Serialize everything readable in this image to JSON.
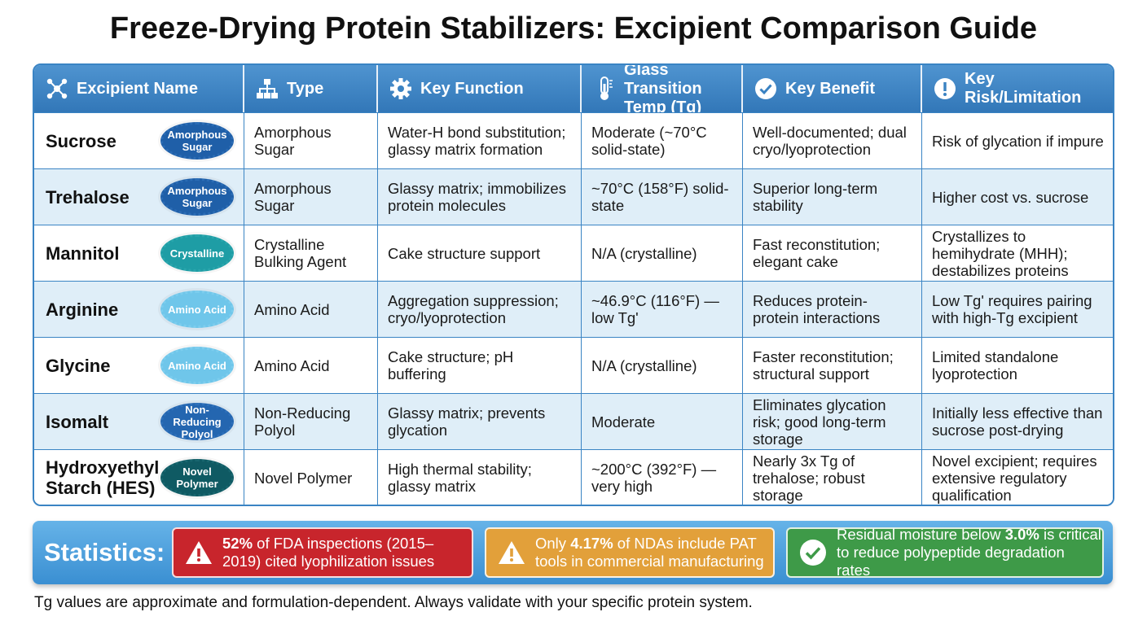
{
  "title": "Freeze-Drying Protein Stabilizers: Excipient Comparison Guide",
  "header": {
    "excipient_name": "Excipient Name",
    "type": "Type",
    "key_function": "Key Function",
    "tg": "Glass Transition Temp (Tg)",
    "key_benefit": "Key Benefit",
    "key_risk": "Key Risk/Limitation"
  },
  "rows": [
    {
      "name": "Sucrose",
      "badge": "Amorphous Sugar",
      "type": "Amorphous Sugar",
      "function": "Water-H bond substitution; glassy matrix formation",
      "tg": "Moderate (~70°C solid-state)",
      "benefit": "Well-documented; dual cryo/lyoprotection",
      "risk": "Risk of glycation if impure"
    },
    {
      "name": "Trehalose",
      "badge": "Amorphous Sugar",
      "type": "Amorphous Sugar",
      "function": "Glassy matrix; immobilizes protein molecules",
      "tg": "~70°C (158°F) solid-state",
      "benefit": "Superior long-term stability",
      "risk": "Higher cost vs. sucrose"
    },
    {
      "name": "Mannitol",
      "badge": "Crystalline",
      "type": "Crystalline Bulking Agent",
      "function": "Cake structure support",
      "tg": "N/A (crystalline)",
      "benefit": "Fast reconstitution; elegant cake",
      "risk": "Crystallizes to hemihydrate (MHH); destabilizes proteins"
    },
    {
      "name": "Arginine",
      "badge": "Amino Acid",
      "type": "Amino Acid",
      "function": "Aggregation suppression; cryo/lyoprotection",
      "tg": "~46.9°C (116°F) — low Tg'",
      "benefit": "Reduces protein-protein interactions",
      "risk": "Low Tg' requires pairing with high-Tg excipient"
    },
    {
      "name": "Glycine",
      "badge": "Amino Acid",
      "type": "Amino Acid",
      "function": "Cake structure; pH buffering",
      "tg": "N/A (crystalline)",
      "benefit": "Faster reconstitution; structural support",
      "risk": "Limited standalone lyoprotection"
    },
    {
      "name": "Isomalt",
      "badge": "Non-Reducing Polyol",
      "type": "Non-Reducing Polyol",
      "function": "Glassy matrix; prevents glycation",
      "tg": "Moderate",
      "benefit": "Eliminates glycation risk; good long-term storage",
      "risk": "Initially less effective than sucrose post-drying"
    },
    {
      "name": "Hydroxyethyl Starch (HES)",
      "badge": "Novel Polymer",
      "type": "Novel Polymer",
      "function": "High thermal stability; glassy matrix",
      "tg": "~200°C (392°F) — very high",
      "benefit": "Nearly 3x Tg of trehalose; robust storage",
      "risk": "Novel excipient; requires extensive regulatory qualification"
    }
  ],
  "stats": {
    "label": "Statistics:",
    "items": [
      {
        "highlight": "52%",
        "text": " of FDA inspections (2015–2019) cited lyophilization issues",
        "color": "#c8252c",
        "icon": "warning-icon"
      },
      {
        "prefix": "Only ",
        "highlight": "4.17%",
        "text": " of NDAs include PAT tools in commercial manufacturing",
        "color": "#e2a03a",
        "icon": "warning-icon"
      },
      {
        "prefix": "Residual moisture below ",
        "highlight": "3.0%",
        "text": " is critical to reduce polypeptide degradation rates",
        "color": "#3e9a48",
        "icon": "check-icon"
      }
    ]
  },
  "footnote": "Tg values are approximate and formulation-dependent. Always validate with your specific protein system."
}
